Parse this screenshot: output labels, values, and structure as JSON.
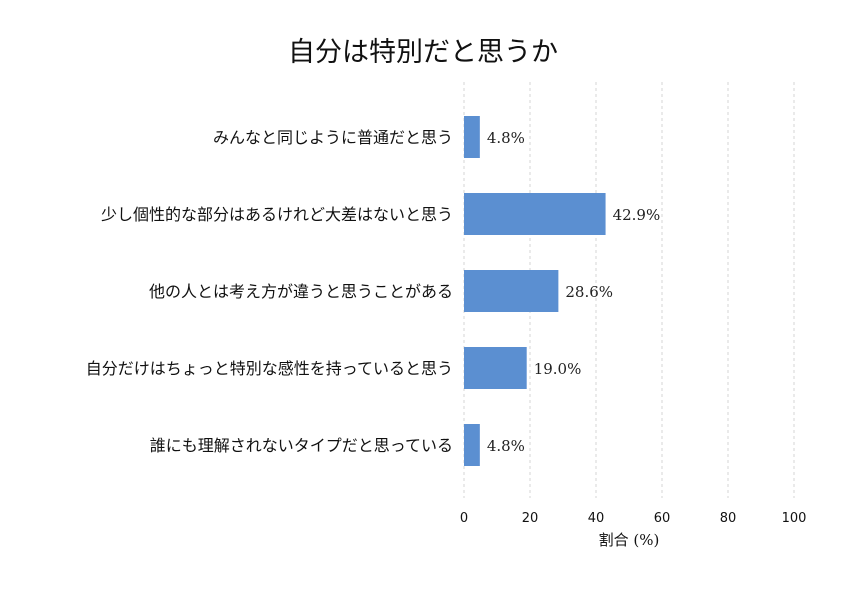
{
  "chart_data": {
    "type": "bar",
    "orientation": "horizontal",
    "title": "自分は特別だと思うか",
    "xlabel": "割合 (%)",
    "ylabel": "",
    "categories": [
      "みんなと同じように普通だと思う",
      "少し個性的な部分はあるけれど大差はないと思う",
      "他の人とは考え方が違うと思うことがある",
      "自分だけはちょっと特別な感性を持っていると思う",
      "誰にも理解されないタイプだと思っている"
    ],
    "values": [
      4.8,
      42.9,
      28.6,
      19.0,
      4.8
    ],
    "data_labels": [
      "4.8%",
      "42.9%",
      "28.6%",
      "19.0%",
      "4.8%"
    ],
    "xlim": [
      0,
      100
    ],
    "xticks": [
      "0",
      "20",
      "40",
      "60",
      "80",
      "100"
    ],
    "grid": "vertical dashed",
    "bar_color": "#5b8fd1",
    "grid_color": "#cccccc"
  }
}
